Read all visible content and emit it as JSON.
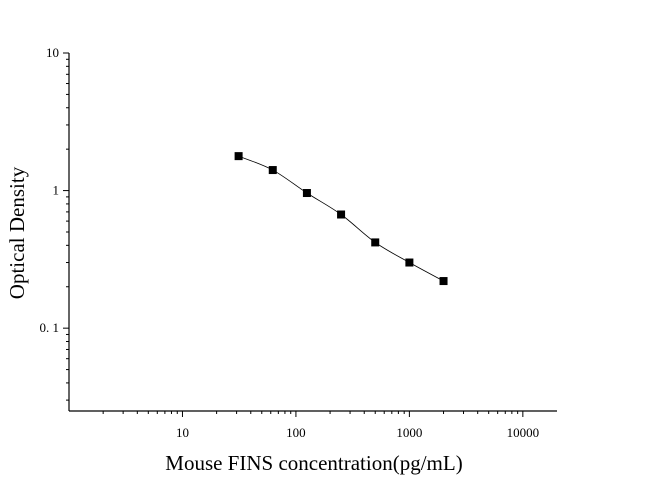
{
  "chart_data": {
    "type": "scatter",
    "title": "",
    "xlabel": "Mouse FINS concentration(pg/mL)",
    "ylabel": "Optical Density",
    "x_scale": "log",
    "y_scale": "log",
    "xlim": [
      1,
      20000
    ],
    "ylim": [
      0.025,
      10
    ],
    "x_ticks": [
      {
        "value": 10,
        "label": "10"
      },
      {
        "value": 100,
        "label": "100"
      },
      {
        "value": 1000,
        "label": "1000"
      },
      {
        "value": 10000,
        "label": "10000"
      }
    ],
    "y_ticks": [
      {
        "value": 0.1,
        "label": "0. 1"
      },
      {
        "value": 1,
        "label": "1"
      },
      {
        "value": 10,
        "label": "10"
      }
    ],
    "grid": false,
    "legend": "none",
    "marker": "square",
    "fit_curve": true,
    "series": [
      {
        "x": [
          31.25,
          62.5,
          125,
          250,
          500,
          1000,
          2000
        ],
        "y": [
          1.78,
          1.41,
          0.96,
          0.67,
          0.42,
          0.3,
          0.22
        ]
      }
    ]
  }
}
